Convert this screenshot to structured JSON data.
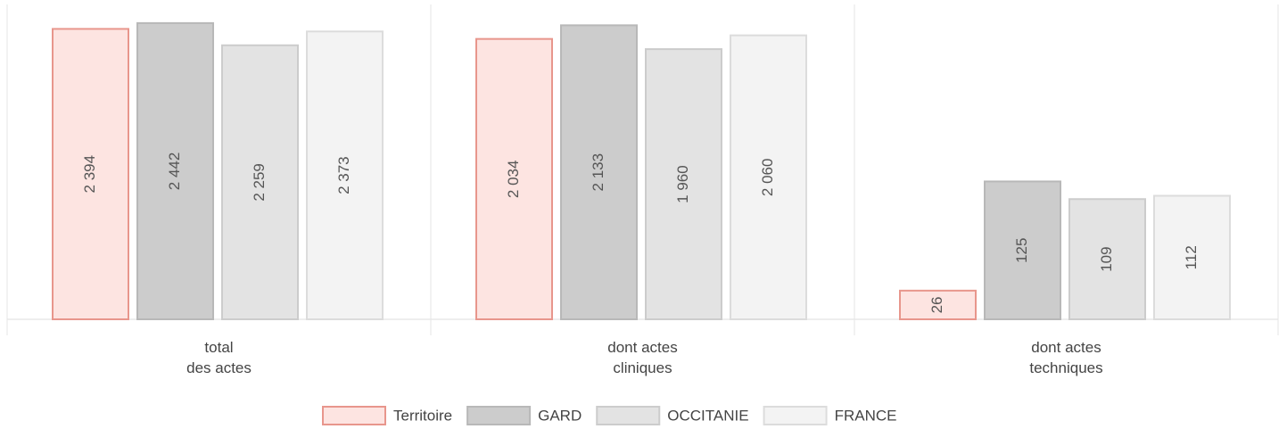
{
  "chart_data": {
    "type": "bar",
    "categories": [
      "total\ndes actes",
      "dont actes\ncliniques",
      "dont actes\ntechniques"
    ],
    "ylim": [
      [
        0,
        2500
      ],
      [
        0,
        2200
      ],
      [
        0,
        275
      ]
    ],
    "series": [
      {
        "name": "Territoire",
        "color": "#fde4e1",
        "edgecolor": "#e8968c",
        "values": [
          2394,
          2034,
          26
        ],
        "value_labels": [
          "2 394",
          "2 034",
          "26"
        ]
      },
      {
        "name": "GARD",
        "color": "#cccccc",
        "edgecolor": "#b8b8b8",
        "values": [
          2442,
          2133,
          125
        ],
        "value_labels": [
          "2 442",
          "2 133",
          "125"
        ]
      },
      {
        "name": "OCCITANIE",
        "color": "#e3e3e3",
        "edgecolor": "#cccccc",
        "values": [
          2259,
          1960,
          109
        ],
        "value_labels": [
          "2 259",
          "1 960",
          "109"
        ]
      },
      {
        "name": "FRANCE",
        "color": "#f3f3f3",
        "edgecolor": "#dcdcdc",
        "values": [
          2373,
          2060,
          112
        ],
        "value_labels": [
          "2 373",
          "2 060",
          "112"
        ]
      }
    ]
  }
}
